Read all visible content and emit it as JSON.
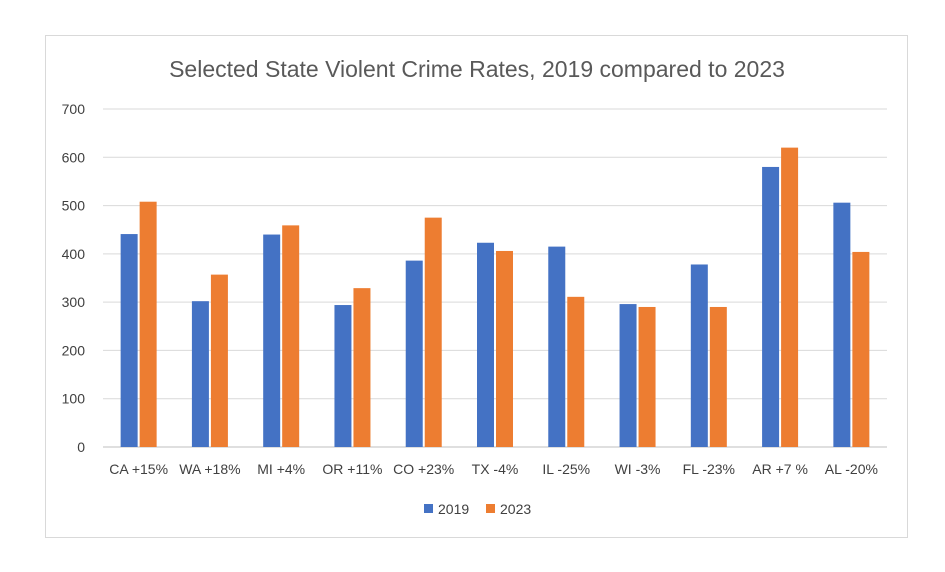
{
  "chart_data": {
    "type": "bar",
    "title": "Selected State Violent Crime Rates, 2019 compared to 2023",
    "categories": [
      "CA +15%",
      "WA +18%",
      "MI +4%",
      "OR +11%",
      "CO +23%",
      "TX -4%",
      "IL -25%",
      "WI -3%",
      "FL -23%",
      "AR +7 %",
      "AL -20%"
    ],
    "series": [
      {
        "name": "2019",
        "color": "#4472c4",
        "values": [
          441,
          302,
          440,
          294,
          386,
          423,
          415,
          296,
          378,
          580,
          506
        ]
      },
      {
        "name": "2023",
        "color": "#ed7d31",
        "values": [
          508,
          357,
          459,
          329,
          475,
          406,
          311,
          290,
          290,
          620,
          404
        ]
      }
    ],
    "yticks": [
      0,
      100,
      200,
      300,
      400,
      500,
      600,
      700
    ],
    "ylim": [
      0,
      700
    ],
    "grid": true,
    "legend": "bottom"
  }
}
